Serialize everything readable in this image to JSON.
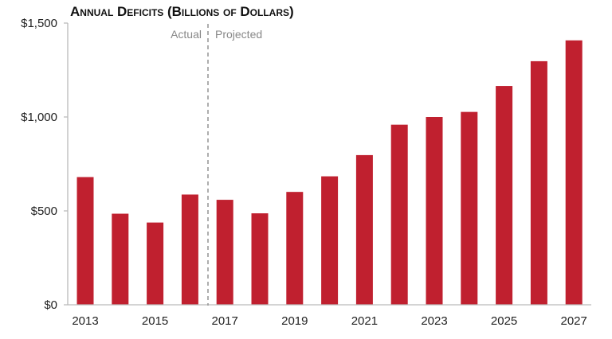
{
  "chart_data": {
    "type": "bar",
    "title": "Annual Deficits (Billions of Dollars)",
    "xlabel": "",
    "ylabel": "",
    "categories": [
      "2013",
      "2014",
      "2015",
      "2016",
      "2017",
      "2018",
      "2019",
      "2020",
      "2021",
      "2022",
      "2023",
      "2024",
      "2025",
      "2026",
      "2027"
    ],
    "values": [
      680,
      485,
      438,
      587,
      559,
      487,
      601,
      684,
      797,
      959,
      1000,
      1027,
      1165,
      1297,
      1408
    ],
    "ylim": [
      0,
      1500
    ],
    "y_ticks": [
      {
        "value": 0,
        "label": "$0"
      },
      {
        "value": 500,
        "label": "$500"
      },
      {
        "value": 1000,
        "label": "$1,000"
      },
      {
        "value": 1500,
        "label": "$1,500"
      }
    ],
    "x_tick_labels": [
      "2013",
      "2015",
      "2017",
      "2019",
      "2021",
      "2023",
      "2025",
      "2027"
    ],
    "annotations": {
      "left": "Actual",
      "right": "Projected"
    },
    "grid": false,
    "bar_color": "#c0202f"
  }
}
